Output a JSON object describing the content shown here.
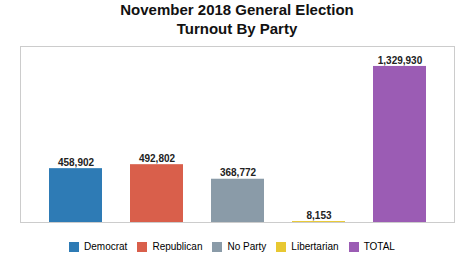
{
  "chart_data": {
    "type": "bar",
    "title": "November 2018 General Election",
    "subtitle": "Turnout By Party",
    "categories": [
      "Democrat",
      "Republican",
      "No Party",
      "Libertarian",
      "TOTAL"
    ],
    "values": [
      458902,
      492802,
      368772,
      8153,
      1329930
    ],
    "value_labels": [
      "458,902",
      "492,802",
      "368,772",
      "8,153",
      "1,329,930"
    ],
    "colors": [
      "#2e7bb5",
      "#d95f4b",
      "#8a9ba8",
      "#e8c832",
      "#9b5cb4"
    ],
    "ylim": [
      0,
      1500000
    ],
    "data_labels": true,
    "tick_labels": false,
    "grid": false,
    "legend": "bottom"
  }
}
